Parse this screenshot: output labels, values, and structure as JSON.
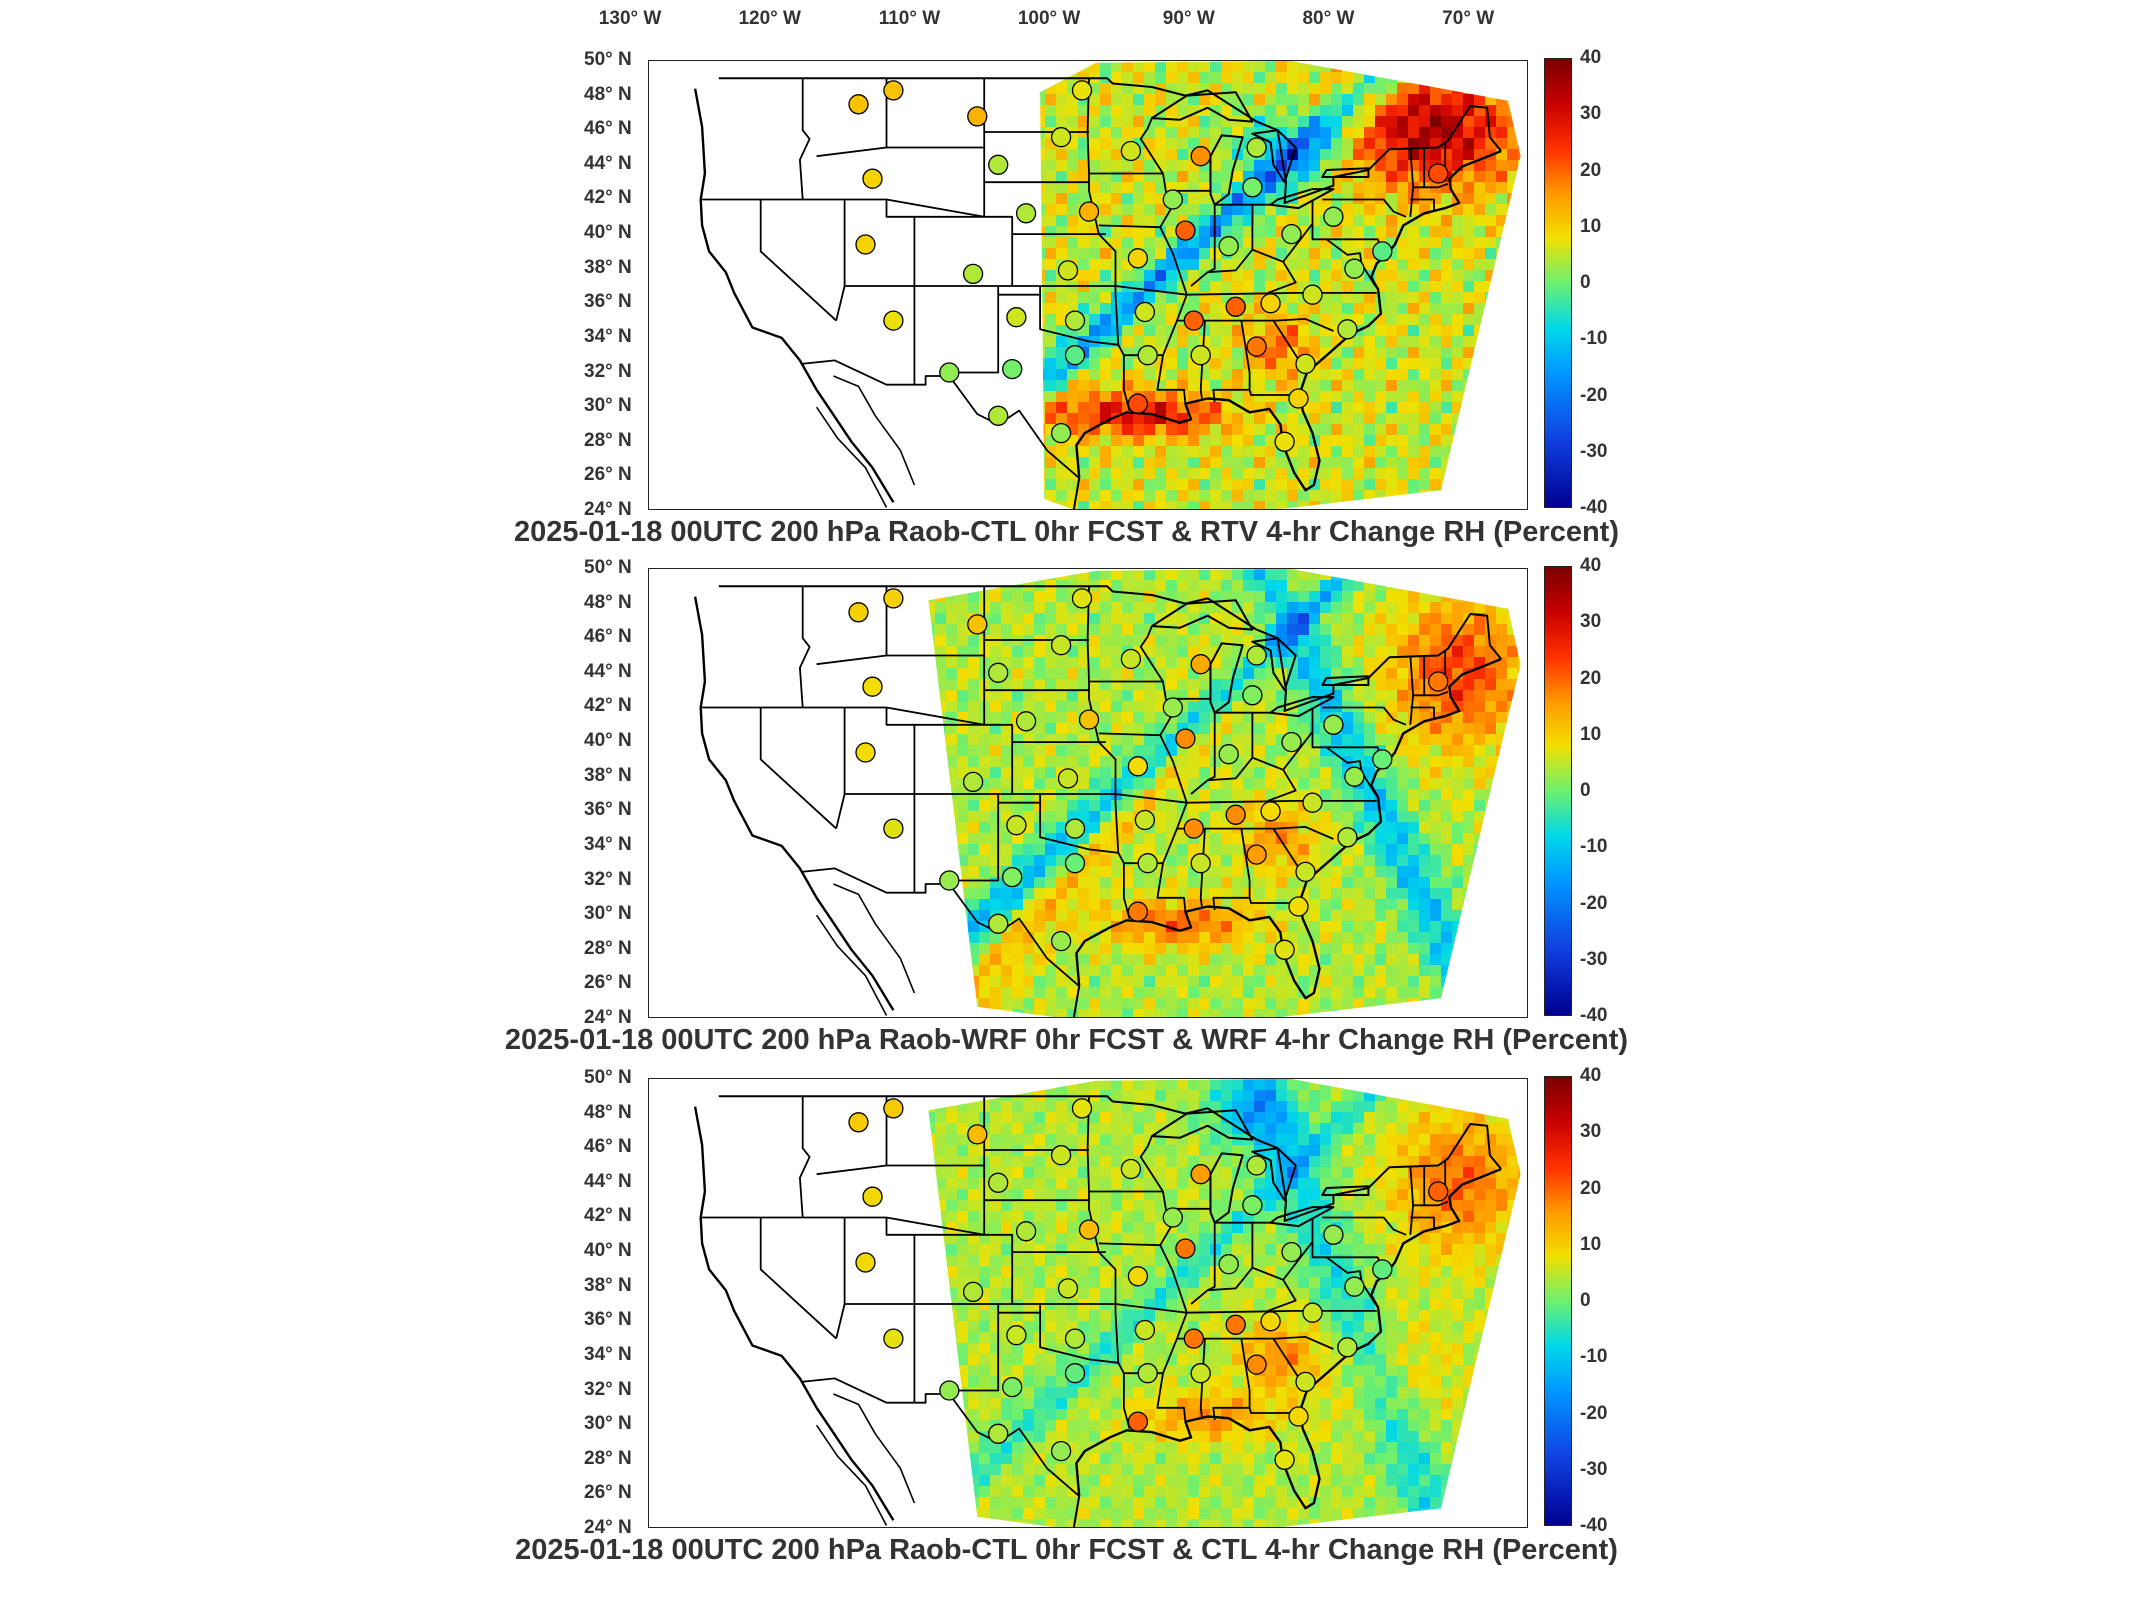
{
  "lon_labels": [
    "130° W",
    "120° W",
    "110° W",
    "100° W",
    "90° W",
    "80° W",
    "70° W"
  ],
  "lat_labels": [
    "50° N",
    "48° N",
    "46° N",
    "44° N",
    "42° N",
    "40° N",
    "38° N",
    "36° N",
    "34° N",
    "32° N",
    "30° N",
    "28° N",
    "26° N",
    "24° N"
  ],
  "colorbar": {
    "ticks": [
      "40",
      "30",
      "20",
      "10",
      "0",
      "-10",
      "-20",
      "-30",
      "-40"
    ],
    "range": [
      -40,
      40
    ],
    "colors": [
      "#7a0000",
      "#c80000",
      "#ff3000",
      "#ff9800",
      "#f2e000",
      "#6cf070",
      "#00d8e8",
      "#0098ff",
      "#1040e0",
      "#000090"
    ]
  },
  "panels": [
    {
      "title": "2025-01-18 00UTC 200 hPa Raob-CTL 0hr FCST & RTV 4-hr Change RH (Percent)",
      "domain_lon_west": -100,
      "style": "rtv"
    },
    {
      "title": "2025-01-18 00UTC 200 hPa Raob-WRF 0hr FCST & WRF 4-hr Change RH (Percent)",
      "domain_lon_west": -108,
      "style": "wrf"
    },
    {
      "title": "2025-01-18 00UTC 200 hPa Raob-CTL 0hr FCST & CTL 4-hr Change RH (Percent)",
      "domain_lon_west": -108,
      "style": "ctl"
    }
  ],
  "stations": [
    {
      "lon": -113.0,
      "lat": 47.5,
      "v": 8
    },
    {
      "lon": -110.5,
      "lat": 48.3,
      "v": 8
    },
    {
      "lon": -104.5,
      "lat": 46.8,
      "v": 10
    },
    {
      "lon": -97.0,
      "lat": 48.3,
      "v": 4
    },
    {
      "lon": -112.0,
      "lat": 43.2,
      "v": 6
    },
    {
      "lon": -103.0,
      "lat": 44.0,
      "v": 0
    },
    {
      "lon": -98.5,
      "lat": 45.6,
      "v": 2
    },
    {
      "lon": -93.5,
      "lat": 44.8,
      "v": 2
    },
    {
      "lon": -88.5,
      "lat": 44.5,
      "v": 14
    },
    {
      "lon": -84.5,
      "lat": 45.0,
      "v": 0
    },
    {
      "lon": -90.5,
      "lat": 42.0,
      "v": -2
    },
    {
      "lon": -89.6,
      "lat": 40.2,
      "v": 18
    },
    {
      "lon": -96.5,
      "lat": 41.3,
      "v": 10
    },
    {
      "lon": -101.0,
      "lat": 41.2,
      "v": 0
    },
    {
      "lon": -112.5,
      "lat": 39.4,
      "v": 6
    },
    {
      "lon": -104.8,
      "lat": 37.7,
      "v": 0
    },
    {
      "lon": -98.0,
      "lat": 37.9,
      "v": 2
    },
    {
      "lon": -93.0,
      "lat": 38.6,
      "v": 6
    },
    {
      "lon": -84.8,
      "lat": 42.7,
      "v": -4
    },
    {
      "lon": -86.5,
      "lat": 39.3,
      "v": -2
    },
    {
      "lon": -82.0,
      "lat": 40.0,
      "v": -2
    },
    {
      "lon": -79.0,
      "lat": 41.0,
      "v": -2
    },
    {
      "lon": -75.5,
      "lat": 39.0,
      "v": -6
    },
    {
      "lon": -77.5,
      "lat": 38.0,
      "v": -2
    },
    {
      "lon": -80.5,
      "lat": 36.5,
      "v": 2
    },
    {
      "lon": -83.5,
      "lat": 36.0,
      "v": 6
    },
    {
      "lon": -89.0,
      "lat": 35.0,
      "v": 18
    },
    {
      "lon": -92.5,
      "lat": 35.5,
      "v": 2
    },
    {
      "lon": -97.5,
      "lat": 35.0,
      "v": 0
    },
    {
      "lon": -101.7,
      "lat": 35.2,
      "v": 2
    },
    {
      "lon": -110.5,
      "lat": 35.0,
      "v": 4
    },
    {
      "lon": -106.5,
      "lat": 32.0,
      "v": -2
    },
    {
      "lon": -102.0,
      "lat": 32.2,
      "v": -4
    },
    {
      "lon": -97.5,
      "lat": 33.0,
      "v": -6
    },
    {
      "lon": -92.3,
      "lat": 33.0,
      "v": 0
    },
    {
      "lon": -88.5,
      "lat": 33.0,
      "v": 2
    },
    {
      "lon": -84.5,
      "lat": 33.5,
      "v": 16
    },
    {
      "lon": -81.0,
      "lat": 32.5,
      "v": 2
    },
    {
      "lon": -78.0,
      "lat": 34.5,
      "v": 0
    },
    {
      "lon": -81.5,
      "lat": 30.5,
      "v": 6
    },
    {
      "lon": -93.0,
      "lat": 30.2,
      "v": 20
    },
    {
      "lon": -98.5,
      "lat": 28.5,
      "v": -2
    },
    {
      "lon": -82.5,
      "lat": 28.0,
      "v": 4
    },
    {
      "lon": -103.0,
      "lat": 29.5,
      "v": 0
    },
    {
      "lon": -86.0,
      "lat": 35.8,
      "v": 18
    },
    {
      "lon": -71.5,
      "lat": 43.5,
      "v": 20
    }
  ]
}
